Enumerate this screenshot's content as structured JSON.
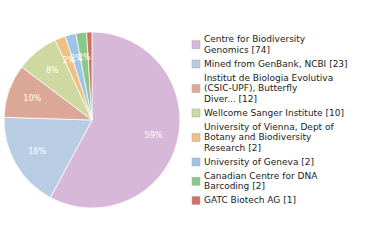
{
  "chart_data": {
    "type": "pie",
    "categories": [
      "Centre for Biodiversity\nGenomics [74]",
      "Mined from GenBank, NCBI [23]",
      "Institut de Biologia Evolutiva\n(CSIC-UPF), Butterfly\nDiver... [12]",
      "Wellcome Sanger Institute [10]",
      "University of Vienna, Dept of\nBotany and Biodiversity\nResearch [2]",
      "University of Geneva [2]",
      "Canadian Centre for DNA\nBarcoding [2]",
      "GATC Biotech AG [1]"
    ],
    "values": [
      59,
      18,
      10,
      8,
      2,
      2,
      2,
      1
    ],
    "value_labels": [
      "59%",
      "18%",
      "10%",
      "8%",
      "2%",
      "2%",
      "2%",
      null
    ],
    "data_labels": true,
    "colors": [
      "#d8b8d8",
      "#b8cce4",
      "#dba898",
      "#cdd9a0",
      "#f0c080",
      "#9ec4e8",
      "#88c888",
      "#d07060"
    ],
    "legend": "right"
  }
}
